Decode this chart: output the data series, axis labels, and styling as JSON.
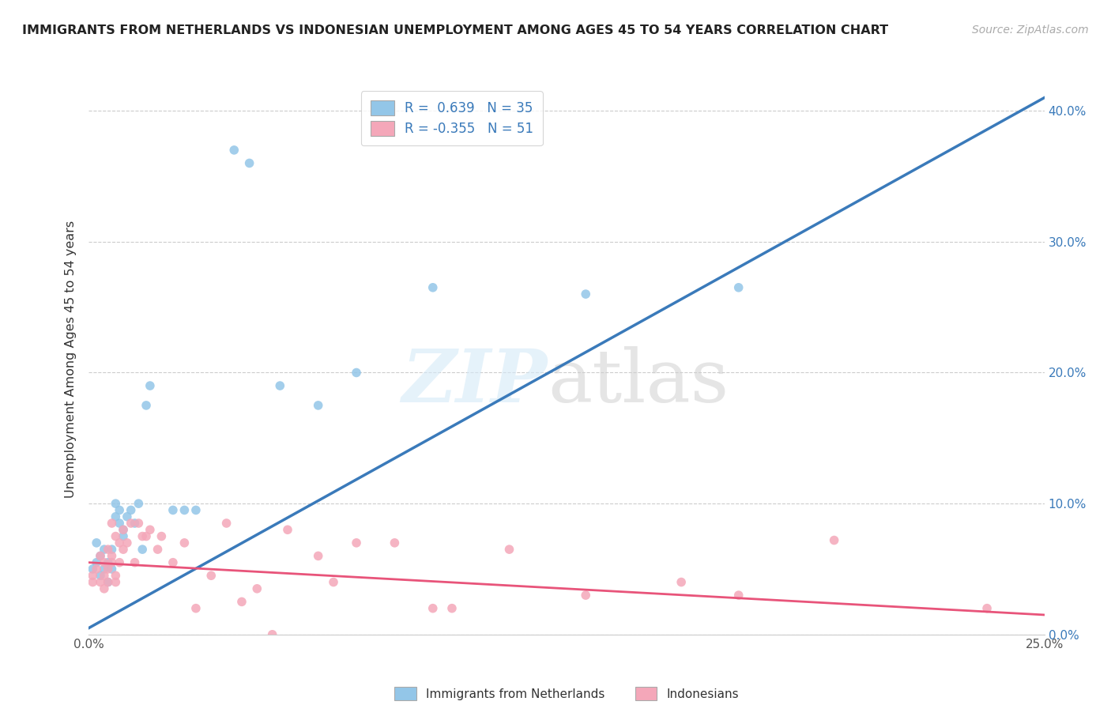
{
  "title": "IMMIGRANTS FROM NETHERLANDS VS INDONESIAN UNEMPLOYMENT AMONG AGES 45 TO 54 YEARS CORRELATION CHART",
  "source": "Source: ZipAtlas.com",
  "ylabel": "Unemployment Among Ages 45 to 54 years",
  "xlim": [
    0.0,
    0.25
  ],
  "ylim": [
    0.0,
    0.42
  ],
  "color_blue": "#93c6e8",
  "color_pink": "#f4a7b9",
  "color_blue_line": "#3a7aba",
  "color_pink_line": "#e8547a",
  "blue_scatter_x": [
    0.001,
    0.002,
    0.002,
    0.003,
    0.003,
    0.004,
    0.004,
    0.005,
    0.005,
    0.006,
    0.006,
    0.007,
    0.007,
    0.008,
    0.008,
    0.009,
    0.009,
    0.01,
    0.011,
    0.012,
    0.013,
    0.014,
    0.015,
    0.016,
    0.022,
    0.025,
    0.028,
    0.038,
    0.042,
    0.05,
    0.06,
    0.07,
    0.09,
    0.13,
    0.17
  ],
  "blue_scatter_y": [
    0.05,
    0.07,
    0.055,
    0.06,
    0.045,
    0.065,
    0.05,
    0.055,
    0.04,
    0.065,
    0.05,
    0.1,
    0.09,
    0.085,
    0.095,
    0.08,
    0.075,
    0.09,
    0.095,
    0.085,
    0.1,
    0.065,
    0.175,
    0.19,
    0.095,
    0.095,
    0.095,
    0.37,
    0.36,
    0.19,
    0.175,
    0.2,
    0.265,
    0.26,
    0.265
  ],
  "pink_scatter_x": [
    0.001,
    0.001,
    0.002,
    0.003,
    0.003,
    0.004,
    0.004,
    0.004,
    0.005,
    0.005,
    0.005,
    0.006,
    0.006,
    0.006,
    0.007,
    0.007,
    0.007,
    0.008,
    0.008,
    0.009,
    0.009,
    0.01,
    0.011,
    0.012,
    0.013,
    0.014,
    0.015,
    0.016,
    0.018,
    0.019,
    0.022,
    0.025,
    0.028,
    0.032,
    0.036,
    0.04,
    0.044,
    0.048,
    0.052,
    0.06,
    0.064,
    0.07,
    0.08,
    0.09,
    0.095,
    0.11,
    0.13,
    0.155,
    0.17,
    0.195,
    0.235
  ],
  "pink_scatter_y": [
    0.045,
    0.04,
    0.05,
    0.04,
    0.06,
    0.055,
    0.045,
    0.035,
    0.065,
    0.05,
    0.04,
    0.085,
    0.06,
    0.055,
    0.075,
    0.045,
    0.04,
    0.07,
    0.055,
    0.08,
    0.065,
    0.07,
    0.085,
    0.055,
    0.085,
    0.075,
    0.075,
    0.08,
    0.065,
    0.075,
    0.055,
    0.07,
    0.02,
    0.045,
    0.085,
    0.025,
    0.035,
    0.0,
    0.08,
    0.06,
    0.04,
    0.07,
    0.07,
    0.02,
    0.02,
    0.065,
    0.03,
    0.04,
    0.03,
    0.072,
    0.02
  ],
  "blue_line_x": [
    0.0,
    0.25
  ],
  "blue_line_y": [
    0.005,
    0.41
  ],
  "pink_line_x": [
    0.0,
    0.25
  ],
  "pink_line_y": [
    0.055,
    0.015
  ],
  "legend1_r": "R =  0.639",
  "legend1_n": "N = 35",
  "legend2_r": "R = -0.355",
  "legend2_n": "N = 51"
}
